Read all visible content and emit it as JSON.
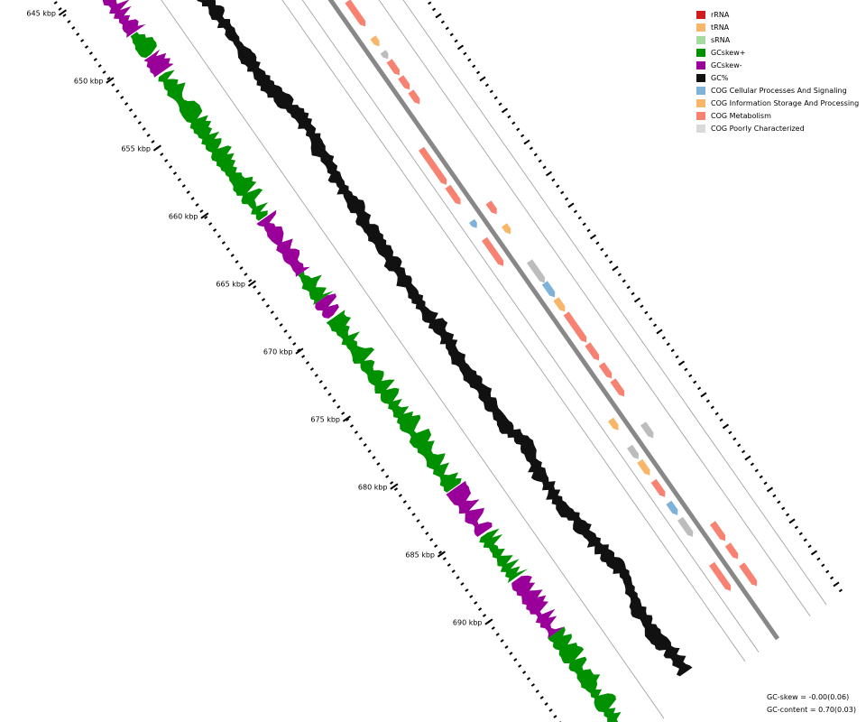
{
  "legend": [
    {
      "key": "rRNA",
      "label": "rRNA",
      "color": "#d01c1c"
    },
    {
      "key": "tRNA",
      "label": "tRNA",
      "color": "#f7b76a"
    },
    {
      "key": "sRNA",
      "label": "sRNA",
      "color": "#a6dba0"
    },
    {
      "key": "gcskew-plus",
      "label": "GCskew+",
      "color": "#009000"
    },
    {
      "key": "gcskew-minus",
      "label": "GCskew-",
      "color": "#990099"
    },
    {
      "key": "gc-percent",
      "label": "GC%",
      "color": "#111111"
    },
    {
      "key": "cog-cellular",
      "label": "COG Cellular Processes And Signaling",
      "color": "#7eb2d9"
    },
    {
      "key": "cog-information",
      "label": "COG Information Storage And Processing",
      "color": "#f7b76a"
    },
    {
      "key": "cog-metabolism",
      "label": "COG Metabolism",
      "color": "#f78272"
    },
    {
      "key": "cog-poorly",
      "label": "COG Poorly Characterized",
      "color": "#d9d9d9"
    }
  ],
  "ruler": {
    "labels": [
      "645 kbp",
      "650 kbp",
      "655 kbp",
      "660 kbp",
      "665 kbp",
      "670 kbp",
      "675 kbp",
      "680 kbp",
      "685 kbp",
      "690 kbp"
    ]
  },
  "stats": {
    "gc_skew": "GC-skew = -0.00(0.06)",
    "gc_content": "GC-content = 0.70(0.03)"
  },
  "colors": {
    "backbone": "#888888",
    "guide": "#9a9a9a",
    "gc": "#111111",
    "skew_plus": "#009000",
    "skew_minus": "#990099",
    "poorly_dark": "#bdbdbd"
  }
}
